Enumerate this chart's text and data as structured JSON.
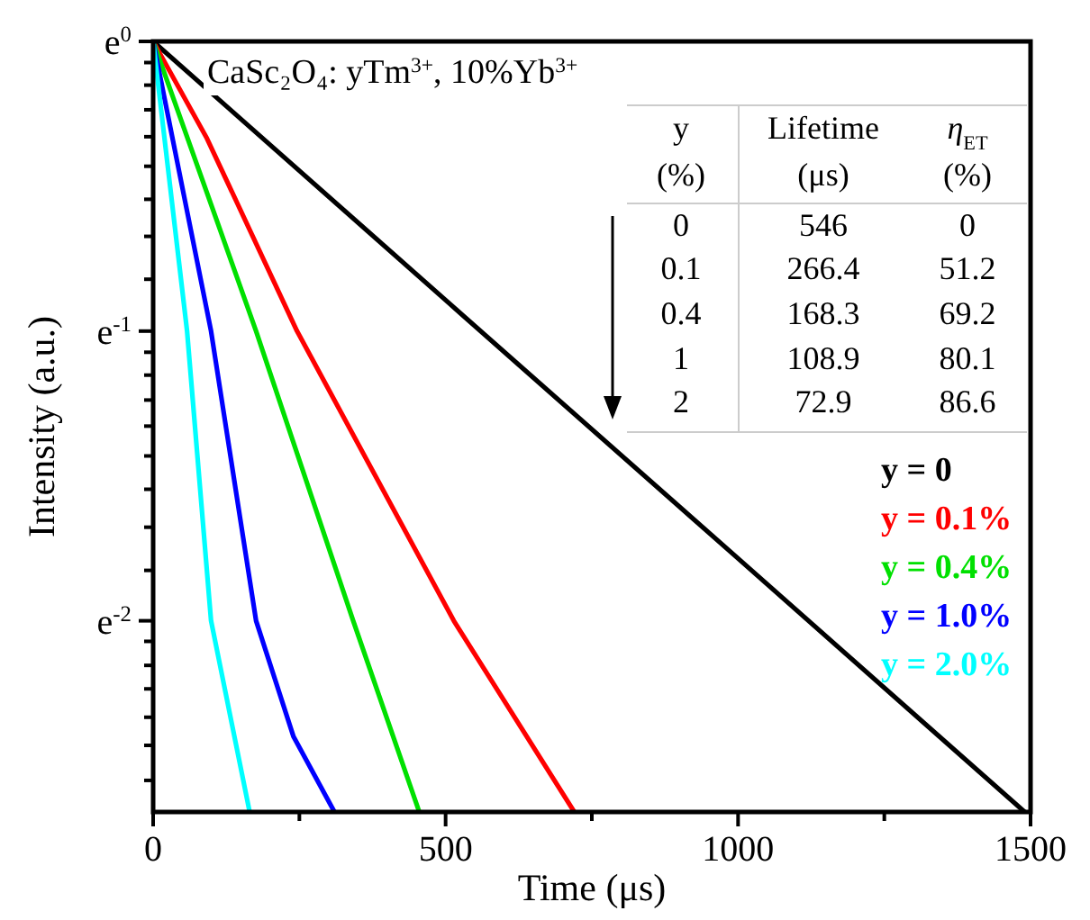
{
  "chart_data": {
    "type": "line",
    "xlabel": "Time (μs)",
    "ylabel": "Intensity (a.u.)",
    "xlim": [
      0,
      1500
    ],
    "ylim": [
      -2.66,
      0
    ],
    "xticks": [
      0,
      {
        "value": 250,
        "label": null
      },
      500,
      {
        "value": 750,
        "label": null
      },
      1000,
      {
        "value": 1250,
        "label": null
      },
      1500
    ],
    "yticks": [
      {
        "value": 0,
        "label": "e$^{0}$"
      },
      {
        "value": -0.073,
        "label": null
      },
      {
        "value": -0.151,
        "label": null
      },
      {
        "value": -0.236,
        "label": null
      },
      {
        "value": -0.329,
        "label": null
      },
      {
        "value": -0.431,
        "label": null
      },
      {
        "value": -0.545,
        "label": null
      },
      {
        "value": -0.673,
        "label": null
      },
      {
        "value": -0.821,
        "label": null
      },
      {
        "value": -1,
        "label": "e$^{-1}$"
      },
      {
        "value": -1.073,
        "label": null
      },
      {
        "value": -1.152,
        "label": null
      },
      {
        "value": -1.238,
        "label": null
      },
      {
        "value": -1.328,
        "label": null
      },
      {
        "value": -1.431,
        "label": null
      },
      {
        "value": -1.546,
        "label": null
      },
      {
        "value": -1.677,
        "label": null
      },
      {
        "value": -1.826,
        "label": null
      },
      {
        "value": -2,
        "label": "e$^{-2}$"
      },
      {
        "value": -2.071,
        "label": null
      },
      {
        "value": -2.154,
        "label": null
      },
      {
        "value": -2.235,
        "label": null
      },
      {
        "value": -2.333,
        "label": null
      },
      {
        "value": -2.43,
        "label": null
      },
      {
        "value": -2.551,
        "label": null
      }
    ],
    "legend": "right",
    "line_style": "solid",
    "series": [
      {
        "name": "y = 0",
        "color": "#000000",
        "x": [
          0,
          500,
          1000,
          1490
        ],
        "values": [
          0,
          -0.893,
          -1.785,
          -2.66
        ]
      },
      {
        "name": "y = 0.1%",
        "color": "#ff0000",
        "x": [
          0,
          92,
          246,
          514,
          720
        ],
        "values": [
          0,
          -0.335,
          -1,
          -2,
          -2.66
        ]
      },
      {
        "name": "y = 0.4%",
        "color": "#00e000",
        "x": [
          0,
          176,
          342,
          455
        ],
        "values": [
          0,
          -1,
          -2,
          -2.66
        ]
      },
      {
        "name": "y = 1.0%",
        "color": "#0000ff",
        "x": [
          0,
          99,
          176,
          240,
          310
        ],
        "values": [
          0,
          -1,
          -2,
          -2.4,
          -2.66
        ]
      },
      {
        "name": "y = 2.0%",
        "color": "#00ffff",
        "x": [
          0,
          58,
          99,
          165
        ],
        "values": [
          0,
          -1,
          -2,
          -2.66
        ]
      }
    ],
    "annotations": [
      "CaSc₂O₄: yTm$^{3+}$, 10%Yb$^{3+}$",
      "y",
      "Lifetime",
      "η$_{ET}$",
      "(%)",
      "(μs)",
      "(%)",
      "0",
      "546",
      "0",
      "0.1",
      "266.4",
      "51.2",
      "0.4",
      "168.3",
      "69.2",
      "1",
      "108.9",
      "80.1",
      "2",
      "72.9",
      "86.6"
    ]
  }
}
